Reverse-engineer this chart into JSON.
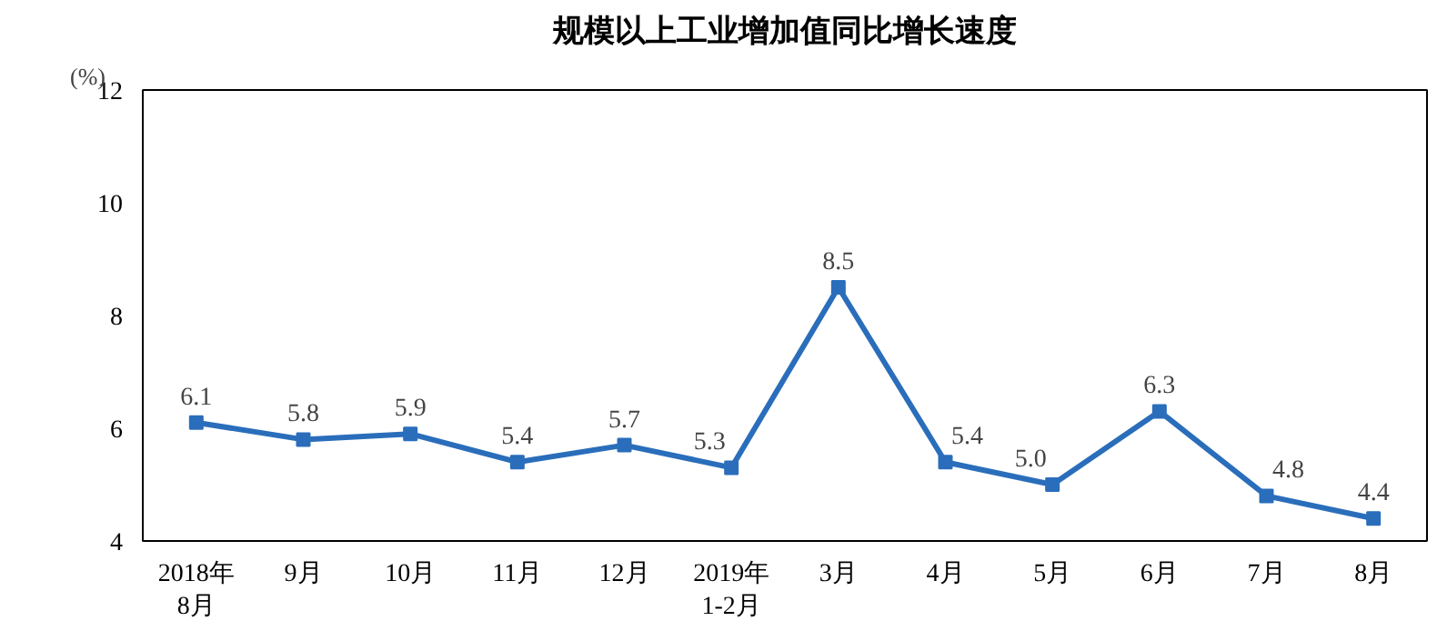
{
  "chart_data": {
    "type": "line",
    "title": "规模以上工业增加值同比增长速度",
    "ylabel": "(%)",
    "categories": [
      "2018年\n8月",
      "9月",
      "10月",
      "11月",
      "12月",
      "2019年\n1-2月",
      "3月",
      "4月",
      "5月",
      "6月",
      "7月",
      "8月"
    ],
    "series": [
      {
        "color": "#2a6ebb",
        "values": [
          6.1,
          5.8,
          5.9,
          5.4,
          5.7,
          5.3,
          8.5,
          5.4,
          5.0,
          6.3,
          4.8,
          4.4
        ]
      }
    ],
    "value_labels": [
      "6.1",
      "5.8",
      "5.9",
      "5.4",
      "5.7",
      "5.3",
      "8.5",
      "5.4",
      "5.0",
      "6.3",
      "4.8",
      "4.4"
    ],
    "ylim": [
      4,
      12
    ],
    "yticks": [
      4,
      6,
      8,
      10,
      12
    ],
    "grid": false,
    "marker": "square",
    "line_style": "solid"
  }
}
